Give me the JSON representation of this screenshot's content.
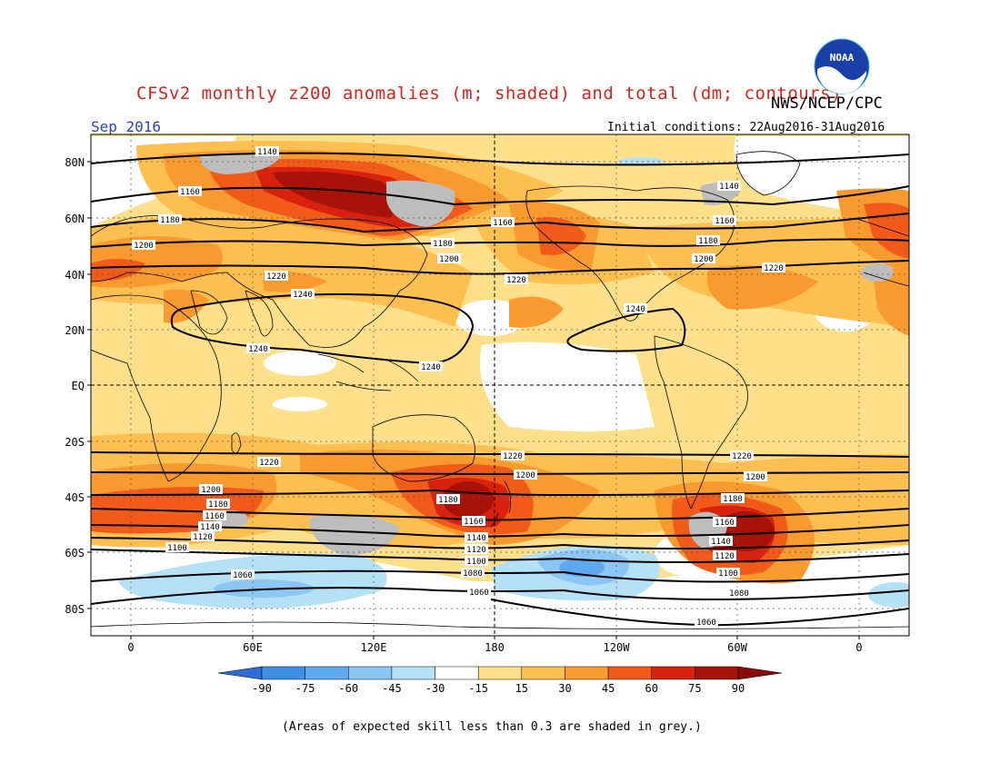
{
  "header": {
    "title": "CFSv2 monthly z200 anomalies (m; shaded) and total (dm; contours)",
    "agency": "NWS/NCEP/CPC",
    "month": "Sep 2016",
    "initial_conditions": "Initial conditions: 22Aug2016-31Aug2016"
  },
  "logo": {
    "text": "NOAA"
  },
  "map": {
    "lat_labels": [
      "80N",
      "60N",
      "40N",
      "20N",
      "EQ",
      "20S",
      "40S",
      "60S",
      "80S"
    ],
    "lon_labels": [
      "0",
      "60E",
      "120E",
      "180",
      "120W",
      "60W",
      "0"
    ],
    "contour_labels": {
      "c1060": "1060",
      "c1080": "1080",
      "c1100": "1100",
      "c1120": "1120",
      "c1140": "1140",
      "c1160": "1160",
      "c1180": "1180",
      "c1200": "1200",
      "c1220": "1220",
      "c1240": "1240"
    }
  },
  "colorbar": {
    "ticks": [
      "-90",
      "-75",
      "-60",
      "-45",
      "-30",
      "-15",
      "15",
      "30",
      "45",
      "60",
      "75",
      "90"
    ],
    "colors": [
      "#2b6fd6",
      "#3f8ee6",
      "#5fa9f0",
      "#8cc6f4",
      "#b5e1f7",
      "#ffffff",
      "#ffe08a",
      "#fdc050",
      "#f99a2e",
      "#f25a1a",
      "#d8220e",
      "#a81208",
      "#8a0a06"
    ]
  },
  "footnote": "(Areas of expected skill less than 0.3 are shaded in grey.)",
  "colors": {
    "title": "#e0201a",
    "month": "#2a3fd8",
    "low_skill_grey": "#bdbdbd"
  }
}
